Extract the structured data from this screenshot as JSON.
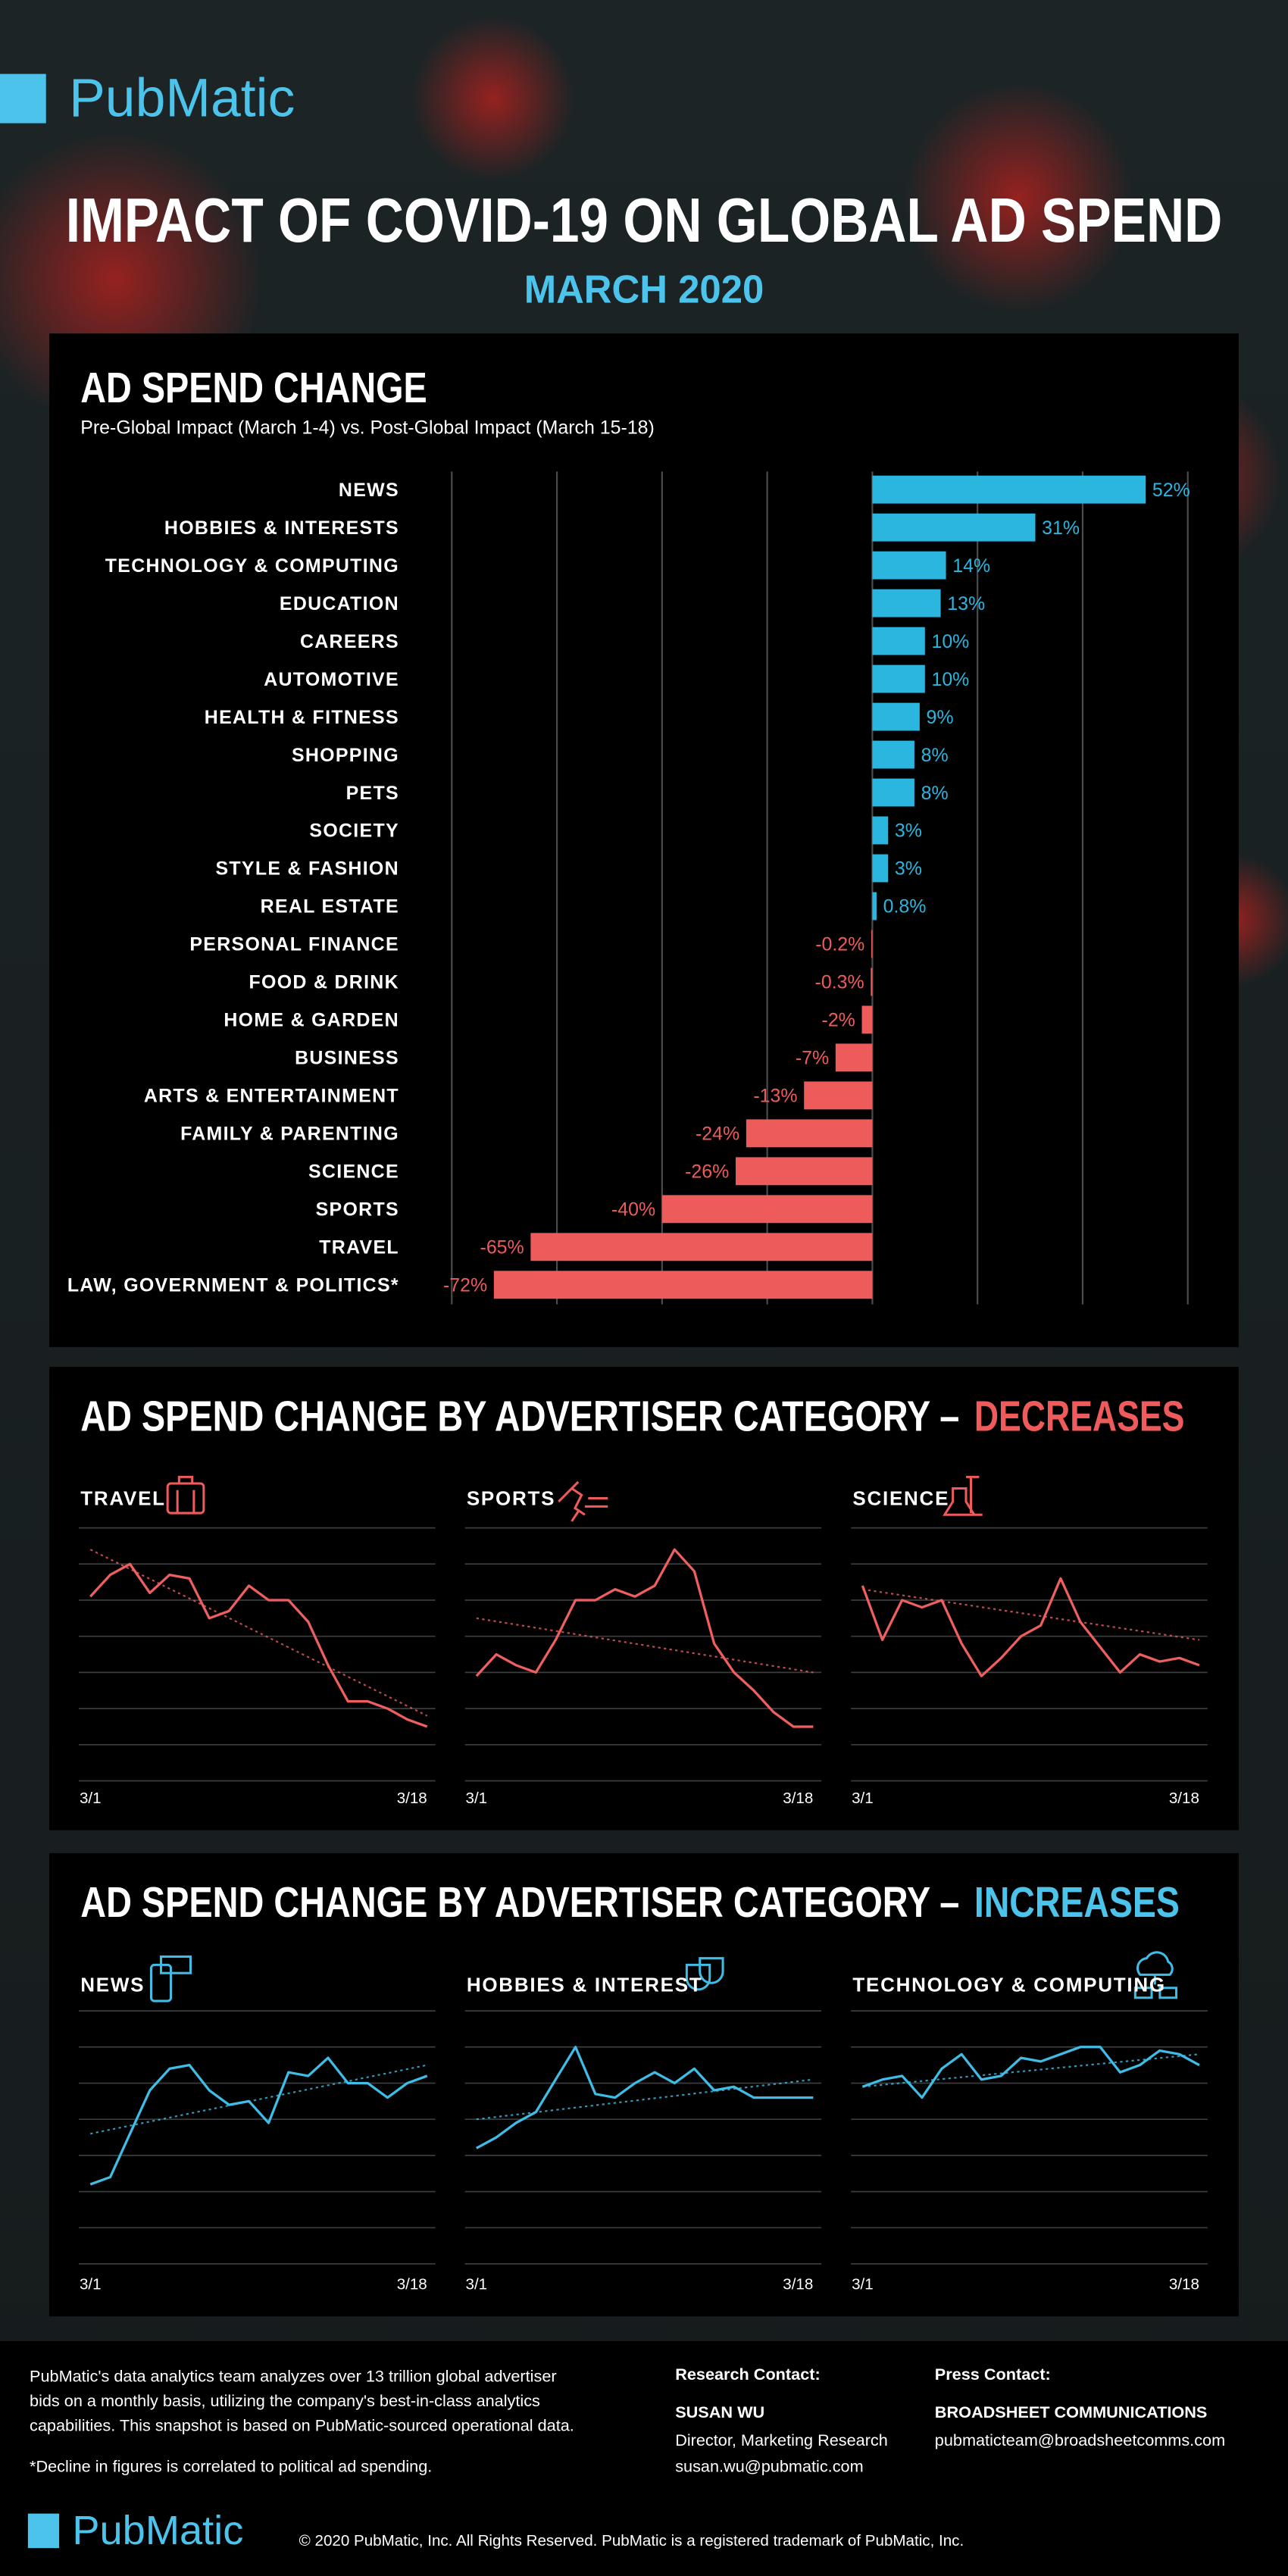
{
  "header": {
    "logo": "PubMatic",
    "title": "IMPACT OF COVID-19 ON GLOBAL AD SPEND",
    "subtitle": "MARCH 2020"
  },
  "sections": [
    {
      "title": "AD SPEND CHANGE BY ADVERTISER CATEGORY –",
      "highlight": "DECREASES"
    },
    {
      "title": "AD SPEND CHANGE BY ADVERTISER CATEGORY –",
      "highlight": "INCREASES"
    }
  ],
  "chart_data": [
    {
      "type": "hbar",
      "title": "AD SPEND CHANGE",
      "subtitle": "Pre-Global Impact (March 1-4) vs. Post-Global Impact (March 15-18)",
      "categories": [
        "NEWS",
        "HOBBIES & INTERESTS",
        "TECHNOLOGY & COMPUTING",
        "EDUCATION",
        "CAREERS",
        "AUTOMOTIVE",
        "HEALTH & FITNESS",
        "SHOPPING",
        "PETS",
        "SOCIETY",
        "STYLE & FASHION",
        "REAL ESTATE",
        "PERSONAL FINANCE",
        "FOOD & DRINK",
        "HOME & GARDEN",
        "BUSINESS",
        "ARTS & ENTERTAINMENT",
        "FAMILY & PARENTING",
        "SCIENCE",
        "SPORTS",
        "TRAVEL",
        "LAW, GOVERNMENT & POLITICS*"
      ],
      "values": [
        52,
        31,
        14,
        13,
        10,
        10,
        9,
        8,
        8,
        3,
        3,
        0.8,
        -0.2,
        -0.3,
        -2,
        -7,
        -13,
        -24,
        -26,
        -40,
        -65,
        -72
      ],
      "value_labels": [
        "52%",
        "31%",
        "14%",
        "13%",
        "10%",
        "10%",
        "9%",
        "8%",
        "8%",
        "3%",
        "3%",
        "0.8%",
        "-0.2%",
        "-0.3%",
        "-2%",
        "-7%",
        "-13%",
        "-24%",
        "-26%",
        "-40%",
        "-65%",
        "-72%"
      ],
      "colors": {
        "positive": "#2bb6df",
        "negative": "#ee5b5b"
      },
      "xlim": [
        -80,
        60
      ],
      "xticks": [
        -80,
        -60,
        -40,
        -20,
        0,
        20,
        40,
        60
      ],
      "grid": true,
      "tick_labels": false
    },
    {
      "type": "line",
      "title": "TRAVEL",
      "color": "#ef5f5f",
      "x": [
        "3/1",
        null,
        null,
        null,
        null,
        null,
        null,
        null,
        null,
        null,
        null,
        null,
        null,
        null,
        null,
        null,
        null,
        "3/18"
      ],
      "values": [
        51,
        57,
        60,
        52,
        57,
        56,
        45,
        47,
        54,
        50,
        50,
        44,
        32,
        22,
        22,
        20,
        17,
        15
      ],
      "trend": [
        64,
        18
      ],
      "ylim": [
        0,
        70
      ],
      "yticks": [
        0,
        10,
        20,
        30,
        40,
        50,
        60,
        70
      ],
      "grid": true,
      "tick_labels": false
    },
    {
      "type": "line",
      "title": "SPORTS",
      "color": "#ef5f5f",
      "x": [
        "3/1",
        null,
        null,
        null,
        null,
        null,
        null,
        null,
        null,
        null,
        null,
        null,
        null,
        null,
        null,
        null,
        null,
        "3/18"
      ],
      "values": [
        29,
        35,
        32,
        30,
        39,
        50,
        50,
        53,
        51,
        54,
        64,
        58,
        38,
        30,
        25,
        19,
        15,
        15
      ],
      "trend": [
        45,
        30
      ],
      "ylim": [
        0,
        70
      ],
      "yticks": [
        0,
        10,
        20,
        30,
        40,
        50,
        60,
        70
      ],
      "grid": true,
      "tick_labels": false
    },
    {
      "type": "line",
      "title": "SCIENCE",
      "color": "#ef5f5f",
      "x": [
        "3/1",
        null,
        null,
        null,
        null,
        null,
        null,
        null,
        null,
        null,
        null,
        null,
        null,
        null,
        null,
        null,
        null,
        "3/18"
      ],
      "values": [
        54,
        39,
        50,
        48,
        50,
        38,
        29,
        34,
        40,
        43,
        56,
        44,
        37,
        30,
        35,
        33,
        34,
        32
      ],
      "trend": [
        53,
        39
      ],
      "ylim": [
        0,
        70
      ],
      "yticks": [
        0,
        10,
        20,
        30,
        40,
        50,
        60,
        70
      ],
      "grid": true,
      "tick_labels": false
    },
    {
      "type": "line",
      "title": "NEWS",
      "color": "#3fbde6",
      "x": [
        "3/1",
        null,
        null,
        null,
        null,
        null,
        null,
        null,
        null,
        null,
        null,
        null,
        null,
        null,
        null,
        null,
        null,
        "3/18"
      ],
      "values": [
        22,
        24,
        36,
        48,
        54,
        55,
        48,
        44,
        45,
        39,
        53,
        52,
        57,
        50,
        50,
        46,
        50,
        52
      ],
      "trend": [
        36,
        55
      ],
      "ylim": [
        0,
        70
      ],
      "yticks": [
        0,
        10,
        20,
        30,
        40,
        50,
        60,
        70
      ],
      "grid": true,
      "tick_labels": false
    },
    {
      "type": "line",
      "title": "HOBBIES & INTEREST",
      "color": "#3fbde6",
      "x": [
        "3/1",
        null,
        null,
        null,
        null,
        null,
        null,
        null,
        null,
        null,
        null,
        null,
        null,
        null,
        null,
        null,
        null,
        "3/18"
      ],
      "values": [
        32,
        35,
        39,
        42,
        51,
        60,
        47,
        46,
        50,
        53,
        50,
        54,
        48,
        49,
        46,
        46,
        46,
        46
      ],
      "trend": [
        40,
        51
      ],
      "ylim": [
        0,
        70
      ],
      "yticks": [
        0,
        10,
        20,
        30,
        40,
        50,
        60,
        70
      ],
      "grid": true,
      "tick_labels": false
    },
    {
      "type": "line",
      "title": "TECHNOLOGY & COMPUTING",
      "color": "#3fbde6",
      "x": [
        "3/1",
        null,
        null,
        null,
        null,
        null,
        null,
        null,
        null,
        null,
        null,
        null,
        null,
        null,
        null,
        null,
        null,
        "3/18"
      ],
      "values": [
        49,
        51,
        52,
        46,
        54,
        58,
        51,
        52,
        57,
        56,
        58,
        60,
        60,
        53,
        55,
        59,
        58,
        55
      ],
      "trend": [
        49,
        58
      ],
      "ylim": [
        0,
        70
      ],
      "yticks": [
        0,
        10,
        20,
        30,
        40,
        50,
        60,
        70
      ],
      "grid": true,
      "tick_labels": false
    }
  ],
  "footer": {
    "description": [
      "PubMatic's data analytics team analyzes over 13 trillion global advertiser",
      "bids on a monthly basis, utilizing the company's best-in-class analytics",
      "capabilities. This snapshot is based on PubMatic-sourced operational data."
    ],
    "note": "*Decline in figures is correlated to political ad spending.",
    "research_contact": {
      "heading": "Research Contact:",
      "name": "SUSAN WU",
      "role": "Director, Marketing Research",
      "email": "susan.wu@pubmatic.com"
    },
    "press_contact": {
      "heading": "Press Contact:",
      "name": "BROADSHEET COMMUNICATIONS",
      "email": "pubmaticteam@broadsheetcomms.com"
    },
    "logo": "PubMatic",
    "copyright": "© 2020 PubMatic, Inc. All Rights Reserved. PubMatic is a registered trademark of PubMatic, Inc."
  }
}
